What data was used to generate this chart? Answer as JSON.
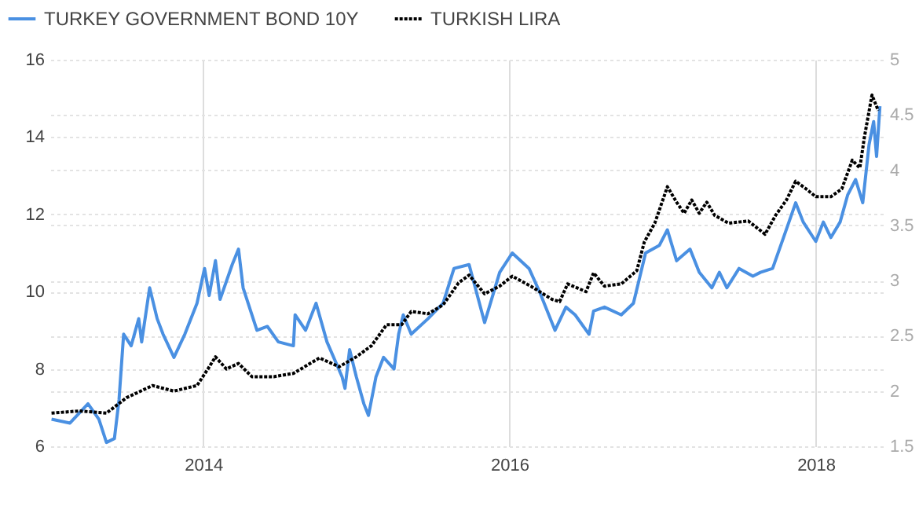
{
  "chart_data": {
    "type": "line",
    "xlim": [
      "2013-01-01",
      "2018-06-10"
    ],
    "xticks": [
      "2014",
      "2016",
      "2018"
    ],
    "ylim": [
      6,
      16
    ],
    "yticks": [
      6,
      8,
      10,
      12,
      14,
      16
    ],
    "y2lim": [
      1.5,
      5
    ],
    "y2ticks": [
      1.5,
      2,
      2.5,
      3,
      3.5,
      4,
      4.5,
      5
    ],
    "grid": true,
    "legend": "top left",
    "series": [
      {
        "name": "TURKEY GOVERNMENT BOND 10Y",
        "color": "#4a90e2",
        "line_style": "solid",
        "x": [
          "2013-01-04",
          "2013-02-17",
          "2013-04-01",
          "2013-04-27",
          "2013-05-15",
          "2013-06-03",
          "2013-06-14",
          "2013-06-25",
          "2013-07-13",
          "2013-07-31",
          "2013-08-07",
          "2013-08-26",
          "2013-09-13",
          "2013-09-27",
          "2013-10-23",
          "2013-11-18",
          "2013-12-17",
          "2014-01-04",
          "2014-01-15",
          "2014-01-30",
          "2014-02-10",
          "2014-03-11",
          "2014-03-26",
          "2014-04-06",
          "2014-05-09",
          "2014-06-03",
          "2014-06-29",
          "2014-08-04",
          "2014-08-08",
          "2014-09-02",
          "2014-09-27",
          "2014-10-23",
          "2014-11-28",
          "2014-12-05",
          "2014-12-16",
          "2015-01-01",
          "2015-01-19",
          "2015-01-30",
          "2015-02-17",
          "2015-03-07",
          "2015-04-01",
          "2015-04-12",
          "2015-04-23",
          "2015-05-12",
          "2015-06-21",
          "2015-07-27",
          "2015-08-22",
          "2015-09-27",
          "2015-11-03",
          "2015-12-09",
          "2016-01-08",
          "2016-02-17",
          "2016-03-13",
          "2016-04-19",
          "2016-05-15",
          "2016-06-06",
          "2016-07-09",
          "2016-07-20",
          "2016-08-15",
          "2016-09-24",
          "2016-10-23",
          "2016-11-21",
          "2016-12-24",
          "2017-01-12",
          "2017-02-03",
          "2017-03-07",
          "2017-03-29",
          "2017-04-28",
          "2017-05-16",
          "2017-06-03",
          "2017-07-02",
          "2017-08-04",
          "2017-08-22",
          "2017-09-20",
          "2017-10-16",
          "2017-11-14",
          "2017-12-02",
          "2018-01-01",
          "2018-01-19",
          "2018-02-06",
          "2018-02-28",
          "2018-03-18",
          "2018-04-06",
          "2018-04-23",
          "2018-05-08",
          "2018-05-19",
          "2018-05-26",
          "2018-06-03"
        ],
        "values": [
          6.7,
          6.6,
          7.1,
          6.7,
          6.1,
          6.2,
          7.2,
          8.9,
          8.6,
          9.3,
          8.7,
          10.1,
          9.3,
          8.9,
          8.3,
          8.9,
          9.7,
          10.6,
          9.9,
          10.8,
          9.8,
          10.7,
          11.1,
          10.1,
          9.0,
          9.1,
          8.7,
          8.6,
          9.4,
          9.0,
          9.7,
          8.7,
          7.8,
          7.5,
          8.5,
          7.8,
          7.1,
          6.8,
          7.8,
          8.3,
          8.0,
          8.9,
          9.4,
          8.9,
          9.3,
          9.7,
          10.6,
          10.7,
          9.2,
          10.5,
          11.0,
          10.6,
          10.0,
          9.0,
          9.6,
          9.4,
          8.9,
          9.5,
          9.6,
          9.4,
          9.7,
          11.0,
          11.2,
          11.6,
          10.8,
          11.1,
          10.5,
          10.1,
          10.5,
          10.1,
          10.6,
          10.4,
          10.5,
          10.6,
          11.4,
          12.3,
          11.8,
          11.3,
          11.8,
          11.4,
          11.8,
          12.5,
          12.9,
          12.3,
          13.8,
          14.4,
          13.5,
          14.8
        ]
      },
      {
        "name": "TURKISH LIRA",
        "color": "#000000",
        "axis": "y2",
        "line_style": "dotted",
        "x": [
          "2013-01-04",
          "2013-03-11",
          "2013-05-15",
          "2013-07-02",
          "2013-09-02",
          "2013-10-23",
          "2013-12-17",
          "2014-01-12",
          "2014-01-30",
          "2014-02-25",
          "2014-03-26",
          "2014-04-27",
          "2014-06-18",
          "2014-08-04",
          "2014-10-05",
          "2014-11-21",
          "2015-01-01",
          "2015-02-06",
          "2015-03-14",
          "2015-04-19",
          "2015-05-12",
          "2015-06-21",
          "2015-07-27",
          "2015-09-02",
          "2015-09-27",
          "2015-11-03",
          "2015-12-09",
          "2016-01-08",
          "2016-02-21",
          "2016-04-12",
          "2016-04-30",
          "2016-05-19",
          "2016-07-02",
          "2016-07-20",
          "2016-08-15",
          "2016-09-24",
          "2016-10-31",
          "2016-11-18",
          "2016-12-13",
          "2017-01-12",
          "2017-02-03",
          "2017-02-21",
          "2017-03-11",
          "2017-03-29",
          "2017-04-16",
          "2017-05-05",
          "2017-06-07",
          "2017-07-24",
          "2017-09-02",
          "2017-09-27",
          "2017-10-23",
          "2017-11-14",
          "2017-12-09",
          "2018-01-01",
          "2018-02-06",
          "2018-03-04",
          "2018-03-29",
          "2018-04-16",
          "2018-04-27",
          "2018-05-15",
          "2018-05-30"
        ],
        "values": [
          1.8,
          1.82,
          1.8,
          1.94,
          2.05,
          2.0,
          2.05,
          2.2,
          2.31,
          2.2,
          2.25,
          2.13,
          2.13,
          2.16,
          2.3,
          2.22,
          2.31,
          2.41,
          2.6,
          2.6,
          2.72,
          2.7,
          2.78,
          2.98,
          3.05,
          2.88,
          2.95,
          3.04,
          2.95,
          2.83,
          2.81,
          2.97,
          2.9,
          3.07,
          2.95,
          2.97,
          3.09,
          3.35,
          3.52,
          3.85,
          3.71,
          3.61,
          3.73,
          3.61,
          3.71,
          3.59,
          3.52,
          3.54,
          3.42,
          3.59,
          3.73,
          3.9,
          3.83,
          3.76,
          3.76,
          3.83,
          4.09,
          4.02,
          4.3,
          4.68,
          4.54
        ]
      }
    ]
  }
}
